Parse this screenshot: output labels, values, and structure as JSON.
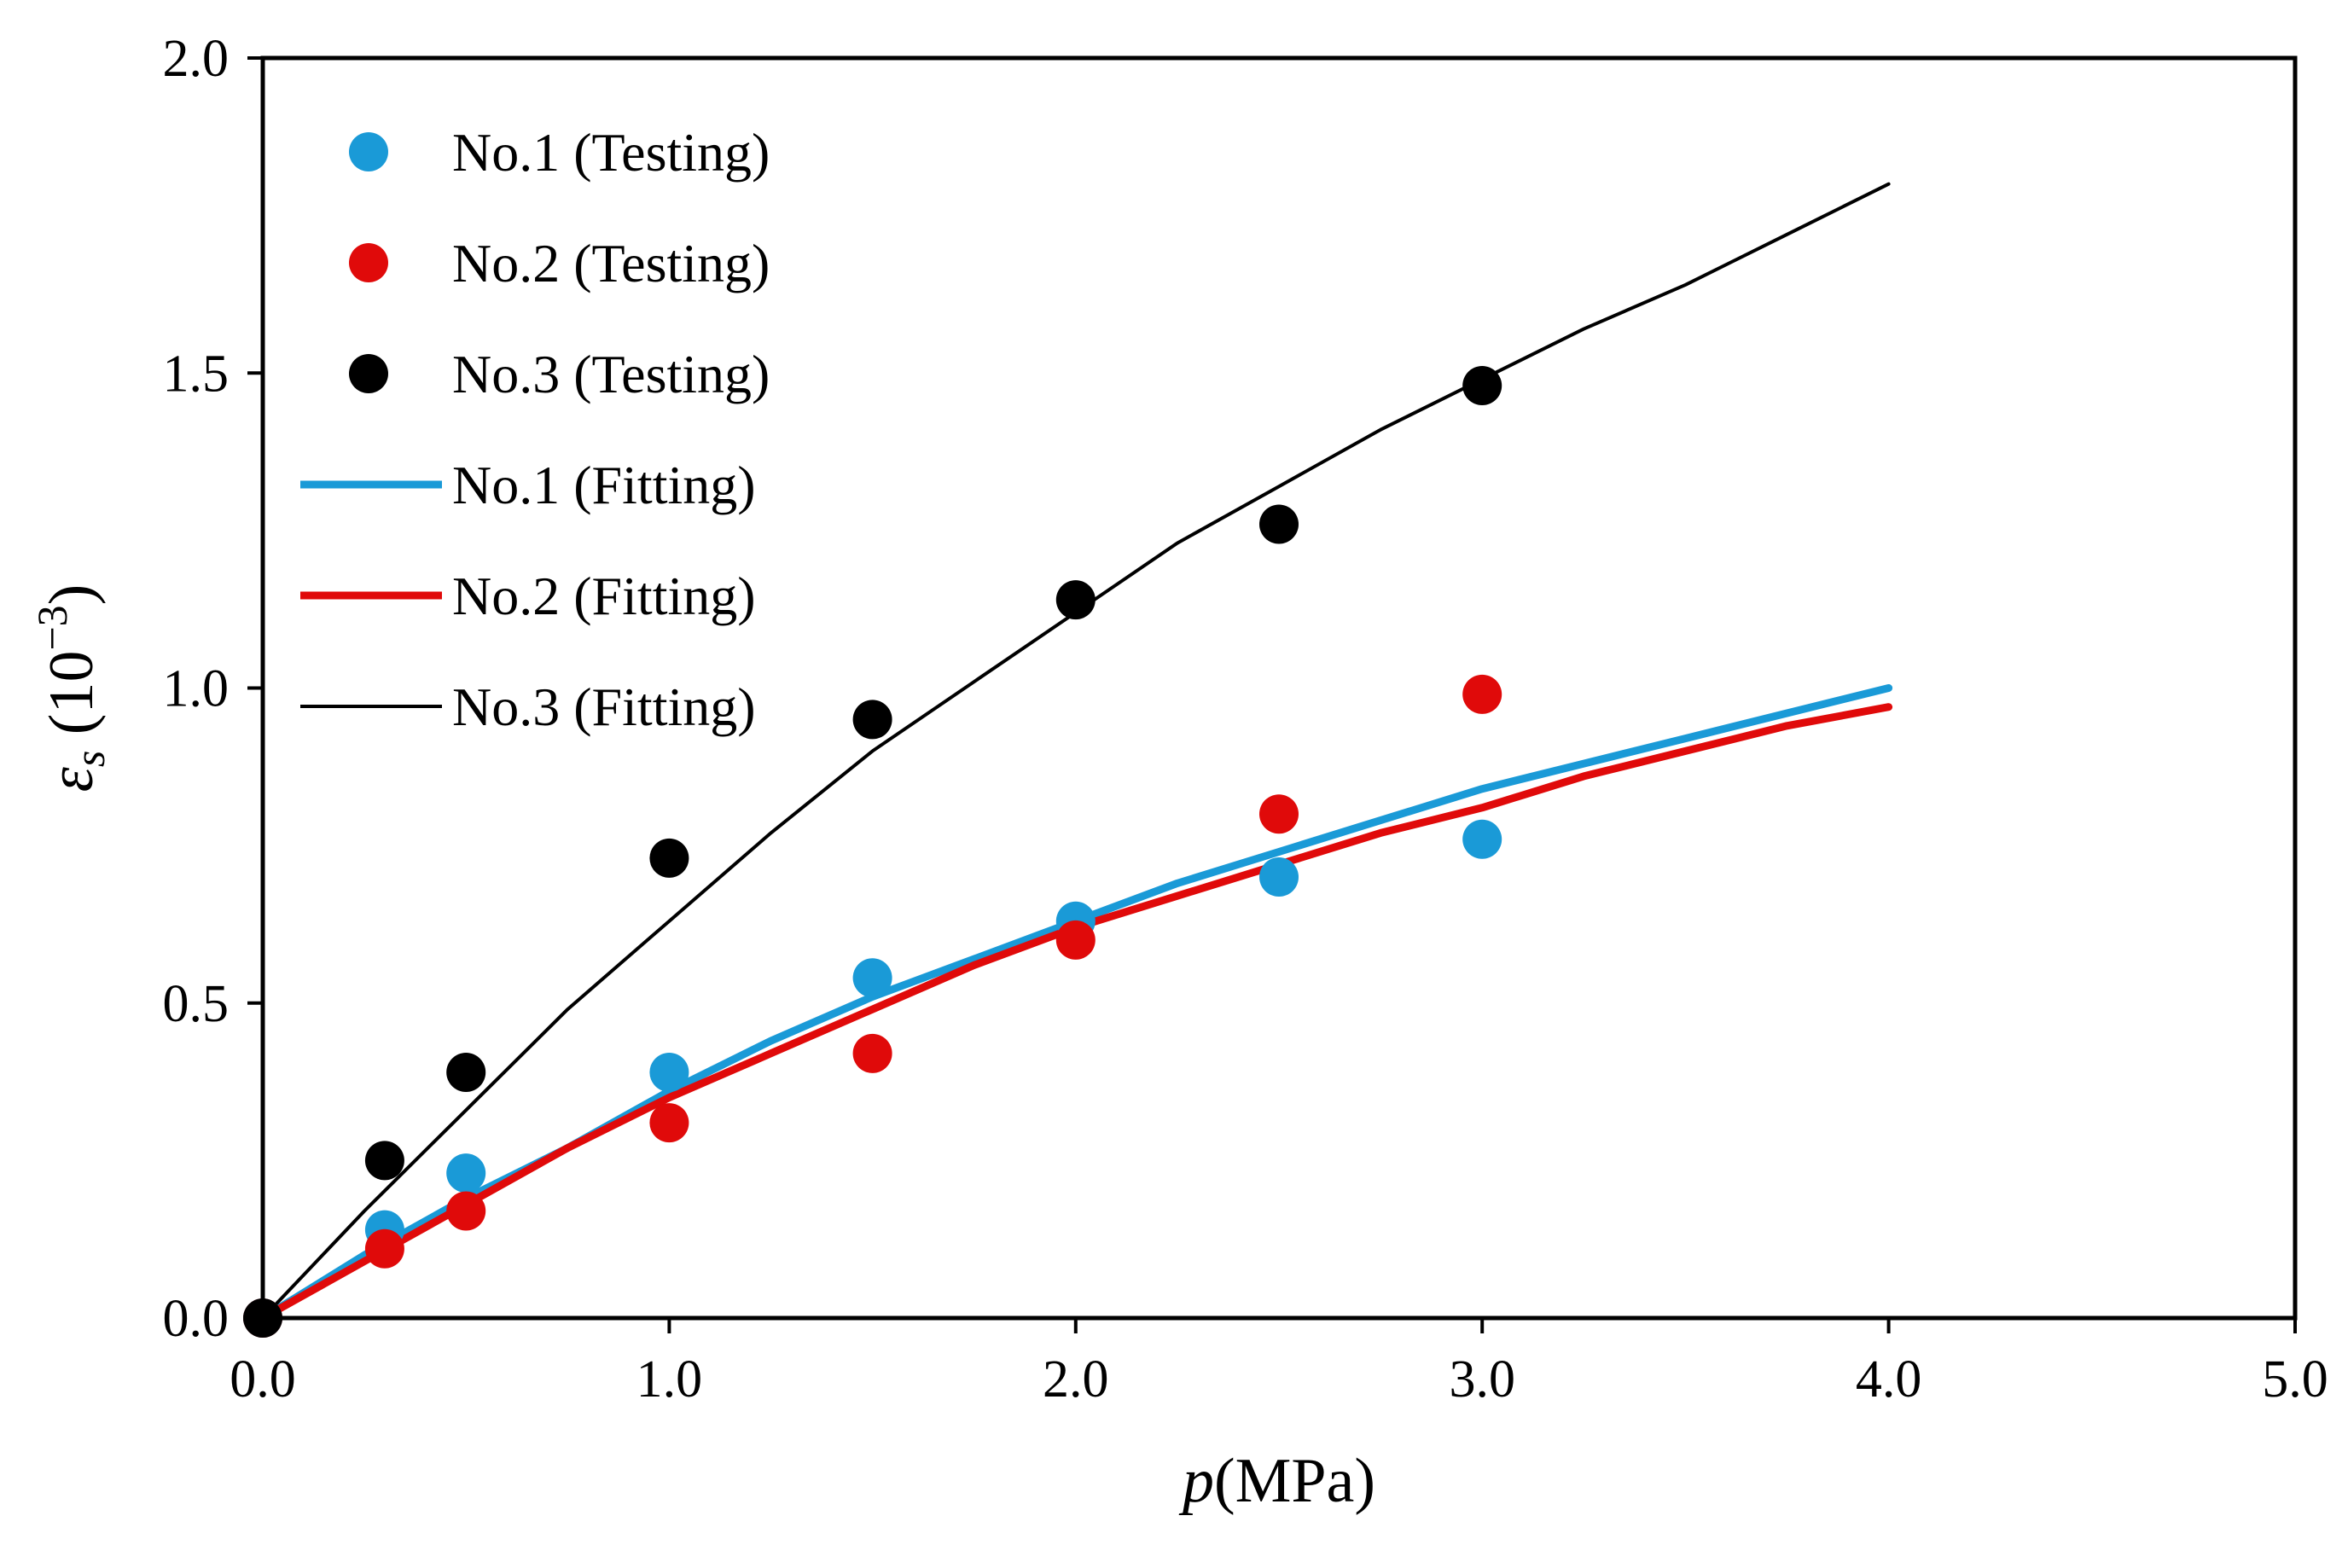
{
  "chart_data": {
    "type": "scatter",
    "xlabel": {
      "var": "p",
      "unit": "(MPa)"
    },
    "ylabel": {
      "var": "ε",
      "sub": "s",
      "unit_pre": " (10",
      "unit_sup": "−3",
      "unit_post": ")"
    },
    "xlim": [
      0,
      5
    ],
    "ylim": [
      0,
      2
    ],
    "xticks": [
      0,
      1,
      2,
      3,
      4,
      5
    ],
    "xtick_labels": [
      "0.0",
      "1.0",
      "2.0",
      "3.0",
      "4.0",
      "5.0"
    ],
    "yticks": [
      0,
      0.5,
      1,
      1.5,
      2
    ],
    "ytick_labels": [
      "0.0",
      "0.5",
      "1.0",
      "1.5",
      "2.0"
    ],
    "grid": false,
    "legend_position": "top-left",
    "series": [
      {
        "name": "No.1 (Testing)",
        "kind": "points",
        "color": "#1a9ad7",
        "x": [
          0,
          0.3,
          0.5,
          1.0,
          1.5,
          2.0,
          2.5,
          3.0
        ],
        "y": [
          0,
          0.14,
          0.23,
          0.39,
          0.54,
          0.63,
          0.7,
          0.76
        ]
      },
      {
        "name": "No.2 (Testing)",
        "kind": "points",
        "color": "#e00a0a",
        "x": [
          0,
          0.3,
          0.5,
          1.0,
          1.5,
          2.0,
          2.5,
          3.0
        ],
        "y": [
          0,
          0.11,
          0.17,
          0.31,
          0.42,
          0.6,
          0.8,
          0.99
        ]
      },
      {
        "name": "No.3 (Testing)",
        "kind": "points",
        "color": "#000000",
        "x": [
          0,
          0.3,
          0.5,
          1.0,
          1.5,
          2.0,
          2.5,
          3.0
        ],
        "y": [
          0,
          0.25,
          0.39,
          0.73,
          0.95,
          1.14,
          1.26,
          1.48
        ]
      },
      {
        "name": "No.1 (Fitting)",
        "kind": "line",
        "color": "#1a9ad7",
        "x": [
          0,
          0.25,
          0.5,
          0.75,
          1.0,
          1.25,
          1.5,
          1.75,
          2.0,
          2.25,
          2.5,
          2.75,
          3.0,
          3.25,
          3.5,
          3.75,
          4.0
        ],
        "y": [
          0,
          0.1,
          0.19,
          0.27,
          0.36,
          0.44,
          0.51,
          0.57,
          0.63,
          0.69,
          0.74,
          0.79,
          0.84,
          0.88,
          0.92,
          0.96,
          1.0
        ]
      },
      {
        "name": "No.2 (Fitting)",
        "kind": "line",
        "color": "#e00a0a",
        "x": [
          0,
          0.25,
          0.5,
          0.75,
          1.0,
          1.25,
          1.5,
          1.75,
          2.0,
          2.25,
          2.5,
          2.75,
          3.0,
          3.25,
          3.5,
          3.75,
          4.0
        ],
        "y": [
          0,
          0.09,
          0.18,
          0.27,
          0.35,
          0.42,
          0.49,
          0.56,
          0.62,
          0.67,
          0.72,
          0.77,
          0.81,
          0.86,
          0.9,
          0.94,
          0.97
        ]
      },
      {
        "name": "No.3 (Fitting)",
        "kind": "line",
        "color": "#000000",
        "x": [
          0,
          0.25,
          0.5,
          0.75,
          1.0,
          1.25,
          1.5,
          1.75,
          2.0,
          2.25,
          2.5,
          2.75,
          3.0,
          3.25,
          3.5,
          3.75,
          4.0
        ],
        "y": [
          0,
          0.17,
          0.33,
          0.49,
          0.63,
          0.77,
          0.9,
          1.01,
          1.12,
          1.23,
          1.32,
          1.41,
          1.49,
          1.57,
          1.64,
          1.72,
          1.8
        ]
      }
    ]
  }
}
